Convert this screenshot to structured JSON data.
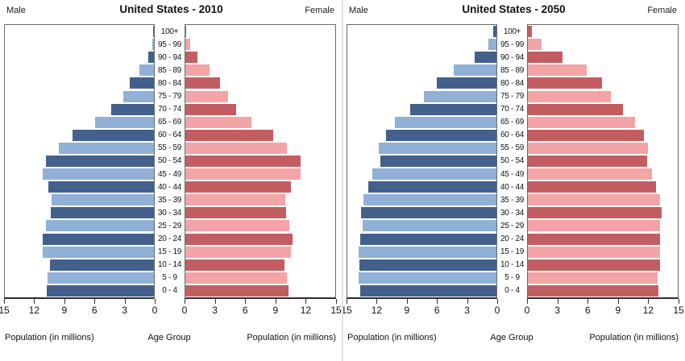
{
  "colors": {
    "male_dark": "#43608c",
    "male_light": "#90b0d6",
    "female_dark": "#c25e62",
    "female_light": "#f2a4a6",
    "axis": "#2e2e2e"
  },
  "chart_data": [
    {
      "type": "bar",
      "subtype": "population-pyramid",
      "title": "United States - 2010",
      "male_header": "Male",
      "female_header": "Female",
      "xlabel_left": "Population (in millions)",
      "xlabel_center": "Age Group",
      "xlabel_right": "Population (in millions)",
      "xlim": [
        0,
        15
      ],
      "ticks": [
        0,
        3,
        6,
        9,
        12,
        15
      ],
      "categories": [
        "100+",
        "95 - 99",
        "90 - 94",
        "85 - 89",
        "80 - 84",
        "75 - 79",
        "70 - 74",
        "65 - 69",
        "60 - 64",
        "55 - 59",
        "50 - 54",
        "45 - 49",
        "40 - 44",
        "35 - 39",
        "30 - 34",
        "25 - 29",
        "20 - 24",
        "15 - 19",
        "10 - 14",
        "5 - 9",
        "0 - 4"
      ],
      "series": [
        {
          "name": "Male",
          "values": [
            0.05,
            0.2,
            0.6,
            1.5,
            2.4,
            3.1,
            4.3,
            5.9,
            8.2,
            9.6,
            10.9,
            11.2,
            10.6,
            10.3,
            10.4,
            10.9,
            11.2,
            11.2,
            10.5,
            10.7,
            10.8
          ]
        },
        {
          "name": "Female",
          "values": [
            0.1,
            0.5,
            1.2,
            2.4,
            3.5,
            4.3,
            5.1,
            6.6,
            8.8,
            10.2,
            11.5,
            11.5,
            10.6,
            10.0,
            10.1,
            10.4,
            10.7,
            10.6,
            9.9,
            10.2,
            10.3
          ]
        }
      ]
    },
    {
      "type": "bar",
      "subtype": "population-pyramid",
      "title": "United States - 2050",
      "male_header": "Male",
      "female_header": "Female",
      "xlabel_left": "Population (in millions)",
      "xlabel_center": "Age Group",
      "xlabel_right": "Population (in millions)",
      "xlim": [
        0,
        15
      ],
      "ticks": [
        0,
        3,
        6,
        9,
        12,
        15
      ],
      "categories": [
        "100+",
        "95 - 99",
        "90 - 94",
        "85 - 89",
        "80 - 84",
        "75 - 79",
        "70 - 74",
        "65 - 69",
        "60 - 64",
        "55 - 59",
        "50 - 54",
        "45 - 49",
        "40 - 44",
        "35 - 39",
        "30 - 34",
        "25 - 29",
        "20 - 24",
        "15 - 19",
        "10 - 14",
        "5 - 9",
        "0 - 4"
      ],
      "series": [
        {
          "name": "Male",
          "values": [
            0.3,
            0.8,
            2.2,
            4.3,
            6.0,
            7.3,
            8.7,
            10.2,
            11.1,
            11.8,
            11.7,
            12.5,
            12.9,
            13.4,
            13.6,
            13.5,
            13.7,
            13.9,
            13.8,
            13.9,
            13.7
          ]
        },
        {
          "name": "Female",
          "values": [
            0.4,
            1.4,
            3.5,
            5.9,
            7.4,
            8.3,
            9.5,
            10.7,
            11.6,
            12.0,
            11.9,
            12.4,
            12.8,
            13.2,
            13.4,
            13.2,
            13.2,
            13.2,
            13.2,
            13.0,
            13.1
          ]
        }
      ]
    }
  ]
}
